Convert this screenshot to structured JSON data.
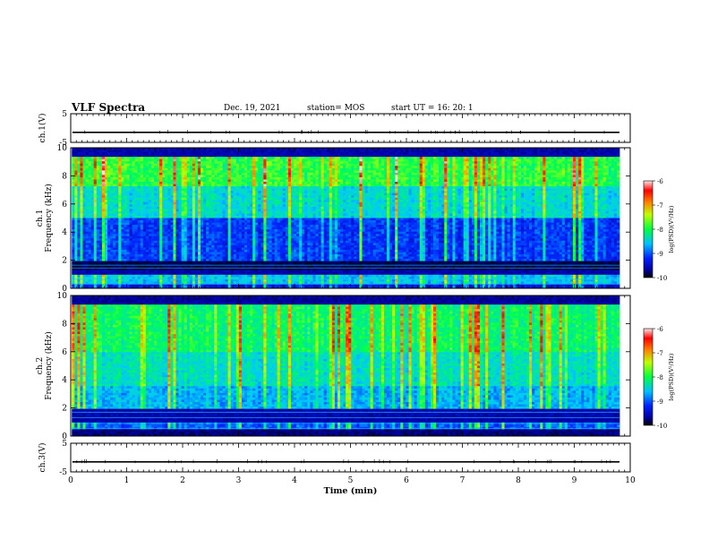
{
  "header": {
    "title": "VLF Spectra",
    "date": "Dec. 19, 2021",
    "station": "station= MOS",
    "start": "start  UT =   16: 20: 1"
  },
  "chart_data": [
    {
      "type": "line",
      "panel": "ch1-voltage",
      "ylabel": "ch.1(V)",
      "ylim": [
        -5,
        5
      ],
      "yticks": [
        "5",
        "-5"
      ],
      "series": [
        {
          "values_description": "flat trace",
          "level": -1.5
        }
      ]
    },
    {
      "type": "heatmap",
      "panel": "ch1-spectrogram",
      "ylabel_line1": "ch.1",
      "ylabel_line2": "Frequency (kHz)",
      "ylim": [
        0,
        10
      ],
      "yticks": [
        "0",
        "2",
        "4",
        "6",
        "8",
        "10"
      ],
      "xlim": [
        0,
        9.85
      ],
      "colorbar": {
        "label": "log(PSD)(V²/Hz)",
        "range": [
          -10,
          -6
        ],
        "ticks": [
          "-6",
          "-7",
          "-8",
          "-9",
          "-10"
        ]
      }
    },
    {
      "type": "heatmap",
      "panel": "ch2-spectrogram",
      "ylabel_line1": "ch.2",
      "ylabel_line2": "Frequency (kHz)",
      "ylim": [
        0,
        10
      ],
      "yticks": [
        "0",
        "2",
        "4",
        "6",
        "8",
        "10"
      ],
      "xlim": [
        0,
        9.85
      ],
      "colorbar": {
        "label": "log(PSD)(V²/Hz)",
        "range": [
          -10,
          -6
        ],
        "ticks": [
          "-6",
          "-7",
          "-8",
          "-9",
          "-10"
        ]
      }
    },
    {
      "type": "line",
      "panel": "ch3-voltage",
      "ylabel": "ch.3(V)",
      "ylim": [
        -5,
        5
      ],
      "yticks": [
        "5",
        "-5"
      ],
      "series": [
        {
          "values_description": "flat trace",
          "level": -1.5
        }
      ]
    }
  ],
  "xaxis": {
    "label": "Time (min)",
    "ticks": [
      "0",
      "1",
      "2",
      "3",
      "4",
      "5",
      "6",
      "7",
      "8",
      "9",
      "10"
    ],
    "range": [
      0,
      10
    ]
  }
}
